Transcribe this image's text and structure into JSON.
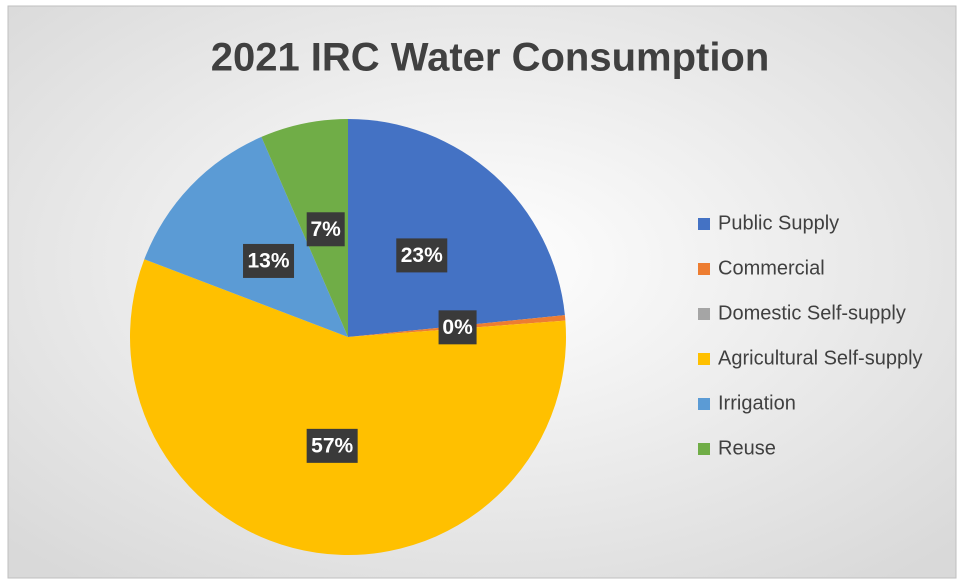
{
  "chart_data": {
    "type": "pie",
    "title": "2021 IRC Water Consumption",
    "categories": [
      "Public Supply",
      "Commercial",
      "Domestic Self-supply",
      "Agricultural Self-supply",
      "Irrigation",
      "Reuse"
    ],
    "values": [
      23.4,
      0.4,
      0,
      57,
      12.7,
      6.5
    ],
    "value_labels": [
      "23%",
      "0%",
      null,
      "57%",
      "13%",
      "7%"
    ],
    "colors": [
      "#4472c4",
      "#ed7d31",
      "#a5a5a5",
      "#ffc000",
      "#5b9bd5",
      "#70ad47"
    ],
    "legend": "right"
  }
}
